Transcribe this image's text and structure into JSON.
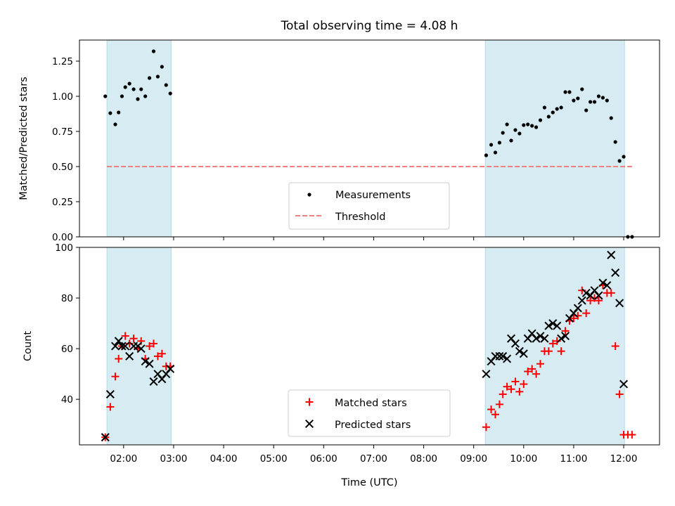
{
  "chart_data": [
    {
      "type": "scatter",
      "title": "Total observing time = 4.08 h",
      "xlabel": "",
      "ylabel": "Matched/Predicted stars",
      "ylim": [
        0,
        1.4
      ],
      "yticks": [
        "0.00",
        "0.25",
        "0.50",
        "0.75",
        "1.00",
        "1.25"
      ],
      "grid": false,
      "legend_position": "lower-center",
      "shaded_intervals": [
        {
          "start": "01:40",
          "end": "02:57"
        },
        {
          "start": "09:14",
          "end": "12:01"
        }
      ],
      "colors": {
        "shade": "#add8e6",
        "measurements": "#000000",
        "threshold": "#f08080"
      },
      "threshold": {
        "name": "Threshold",
        "value": 0.5,
        "x_start": "01:40",
        "x_end": "12:10"
      },
      "series": [
        {
          "name": "Measurements",
          "marker": "dot",
          "points": [
            [
              "01:38",
              1.0
            ],
            [
              "01:44",
              0.88
            ],
            [
              "01:50",
              0.8
            ],
            [
              "01:54",
              0.885
            ],
            [
              "01:58",
              1.0
            ],
            [
              "02:02",
              1.065
            ],
            [
              "02:07",
              1.09
            ],
            [
              "02:12",
              1.05
            ],
            [
              "02:17",
              0.98
            ],
            [
              "02:21",
              1.05
            ],
            [
              "02:26",
              1.0
            ],
            [
              "02:31",
              1.13
            ],
            [
              "02:36",
              1.32
            ],
            [
              "02:41",
              1.14
            ],
            [
              "02:46",
              1.21
            ],
            [
              "02:51",
              1.08
            ],
            [
              "02:56",
              1.02
            ],
            [
              "09:15",
              0.58
            ],
            [
              "09:21",
              0.655
            ],
            [
              "09:26",
              0.6
            ],
            [
              "09:31",
              0.67
            ],
            [
              "09:35",
              0.74
            ],
            [
              "09:40",
              0.8
            ],
            [
              "09:45",
              0.685
            ],
            [
              "09:50",
              0.76
            ],
            [
              "09:55",
              0.735
            ],
            [
              "10:00",
              0.795
            ],
            [
              "10:05",
              0.8
            ],
            [
              "10:10",
              0.79
            ],
            [
              "10:15",
              0.78
            ],
            [
              "10:20",
              0.83
            ],
            [
              "10:25",
              0.92
            ],
            [
              "10:30",
              0.855
            ],
            [
              "10:35",
              0.885
            ],
            [
              "10:40",
              0.91
            ],
            [
              "10:45",
              0.92
            ],
            [
              "10:50",
              1.03
            ],
            [
              "10:55",
              1.03
            ],
            [
              "11:00",
              0.97
            ],
            [
              "11:05",
              0.985
            ],
            [
              "11:10",
              1.05
            ],
            [
              "11:15",
              0.9
            ],
            [
              "11:20",
              0.96
            ],
            [
              "11:25",
              0.96
            ],
            [
              "11:30",
              1.0
            ],
            [
              "11:35",
              0.99
            ],
            [
              "11:40",
              0.97
            ],
            [
              "11:45",
              0.845
            ],
            [
              "11:50",
              0.675
            ],
            [
              "11:55",
              0.54
            ],
            [
              "12:00",
              0.57
            ],
            [
              "12:05",
              0.0
            ],
            [
              "12:10",
              0.0
            ]
          ]
        }
      ]
    },
    {
      "type": "scatter",
      "title": "",
      "xlabel": "Time (UTC)",
      "ylabel": "Count",
      "ylim": [
        22,
        100
      ],
      "yticks": [
        "40",
        "60",
        "80",
        "100"
      ],
      "xlim": [
        "01:07",
        "12:43"
      ],
      "xticks": [
        "02:00",
        "03:00",
        "04:00",
        "05:00",
        "06:00",
        "07:00",
        "08:00",
        "09:00",
        "10:00",
        "11:00",
        "12:00"
      ],
      "grid": false,
      "legend_position": "lower-center",
      "colors": {
        "matched": "#ff0000",
        "predicted": "#000000"
      },
      "series": [
        {
          "name": "Matched stars",
          "marker": "plus",
          "points": [
            [
              "01:38",
              25
            ],
            [
              "01:44",
              37
            ],
            [
              "01:50",
              49
            ],
            [
              "01:54",
              56
            ],
            [
              "01:58",
              61
            ],
            [
              "02:02",
              65
            ],
            [
              "02:07",
              62
            ],
            [
              "02:12",
              64
            ],
            [
              "02:17",
              60
            ],
            [
              "02:21",
              63
            ],
            [
              "02:26",
              56
            ],
            [
              "02:31",
              61
            ],
            [
              "02:36",
              62
            ],
            [
              "02:41",
              57
            ],
            [
              "02:46",
              58
            ],
            [
              "02:51",
              53
            ],
            [
              "02:56",
              53
            ],
            [
              "09:15",
              29
            ],
            [
              "09:21",
              36
            ],
            [
              "09:26",
              34
            ],
            [
              "09:31",
              38
            ],
            [
              "09:35",
              42
            ],
            [
              "09:40",
              45
            ],
            [
              "09:45",
              44
            ],
            [
              "09:50",
              47
            ],
            [
              "09:55",
              43
            ],
            [
              "10:00",
              46
            ],
            [
              "10:05",
              51
            ],
            [
              "10:10",
              52
            ],
            [
              "10:15",
              50
            ],
            [
              "10:20",
              54
            ],
            [
              "10:25",
              59
            ],
            [
              "10:30",
              59
            ],
            [
              "10:35",
              62
            ],
            [
              "10:40",
              63
            ],
            [
              "10:45",
              59
            ],
            [
              "10:50",
              67
            ],
            [
              "10:55",
              71
            ],
            [
              "11:00",
              72
            ],
            [
              "11:05",
              73
            ],
            [
              "11:10",
              83
            ],
            [
              "11:15",
              74
            ],
            [
              "11:20",
              79
            ],
            [
              "11:25",
              80
            ],
            [
              "11:30",
              79
            ],
            [
              "11:35",
              85
            ],
            [
              "11:40",
              82
            ],
            [
              "11:45",
              82
            ],
            [
              "11:50",
              61
            ],
            [
              "11:55",
              42
            ],
            [
              "12:00",
              26
            ],
            [
              "12:05",
              26
            ],
            [
              "12:10",
              26
            ]
          ]
        },
        {
          "name": "Predicted stars",
          "marker": "x",
          "points": [
            [
              "01:38",
              25
            ],
            [
              "01:44",
              42
            ],
            [
              "01:50",
              61
            ],
            [
              "01:54",
              63
            ],
            [
              "01:58",
              61
            ],
            [
              "02:02",
              61
            ],
            [
              "02:07",
              57
            ],
            [
              "02:12",
              61
            ],
            [
              "02:17",
              61
            ],
            [
              "02:21",
              60
            ],
            [
              "02:26",
              55
            ],
            [
              "02:31",
              54
            ],
            [
              "02:36",
              47
            ],
            [
              "02:41",
              50
            ],
            [
              "02:46",
              48
            ],
            [
              "02:51",
              50
            ],
            [
              "02:56",
              52
            ],
            [
              "09:15",
              50
            ],
            [
              "09:21",
              55
            ],
            [
              "09:26",
              57
            ],
            [
              "09:31",
              57
            ],
            [
              "09:35",
              57
            ],
            [
              "09:40",
              56
            ],
            [
              "09:45",
              64
            ],
            [
              "09:50",
              62
            ],
            [
              "09:55",
              59
            ],
            [
              "10:00",
              58
            ],
            [
              "10:05",
              64
            ],
            [
              "10:10",
              66
            ],
            [
              "10:15",
              64
            ],
            [
              "10:20",
              65
            ],
            [
              "10:25",
              64
            ],
            [
              "10:30",
              69
            ],
            [
              "10:35",
              70
            ],
            [
              "10:40",
              69
            ],
            [
              "10:45",
              64
            ],
            [
              "10:50",
              65
            ],
            [
              "10:55",
              72
            ],
            [
              "11:00",
              74
            ],
            [
              "11:05",
              76
            ],
            [
              "11:10",
              79
            ],
            [
              "11:15",
              82
            ],
            [
              "11:20",
              81
            ],
            [
              "11:25",
              83
            ],
            [
              "11:30",
              81
            ],
            [
              "11:35",
              86
            ],
            [
              "11:40",
              85
            ],
            [
              "11:45",
              97
            ],
            [
              "11:50",
              90
            ],
            [
              "11:55",
              78
            ],
            [
              "12:00",
              46
            ]
          ]
        }
      ]
    }
  ]
}
